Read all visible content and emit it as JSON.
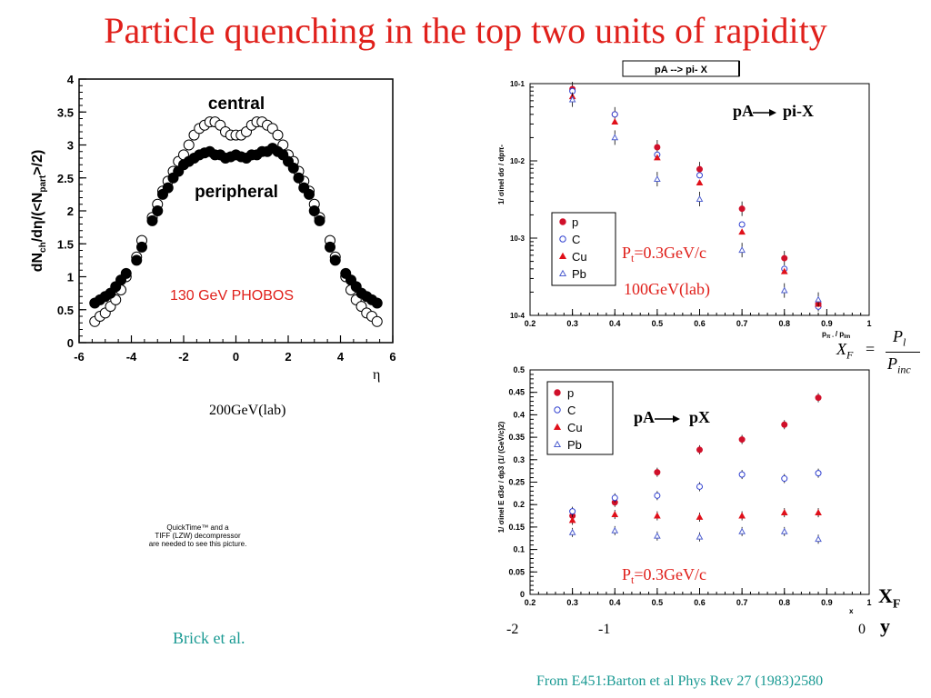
{
  "slide": {
    "title": "Particle quenching in the top two units of rapidity",
    "left_caption": "200GeV(lab)",
    "quicktime_note": [
      "QuickTime™ and a",
      "TIFF (LZW) decompressor",
      "are needed to see this picture."
    ],
    "citation_left": "Brick et al.",
    "citation_right": "From E451:Barton et al Phys Rev 27 (1983)2580",
    "xf_formula": {
      "lhs": "X",
      "lhs_sub": "F",
      "equals": "=",
      "num": "P",
      "num_sub": "l",
      "den": "P",
      "den_sub": "inc"
    },
    "rapidity_axis": {
      "labels": [
        "-2",
        "-1",
        "0"
      ],
      "xf_label": "X",
      "xf_sub": "F",
      "y_label": "y"
    }
  },
  "colors": {
    "title": "#e0201b",
    "accent_red": "#e0201b",
    "citation": "#1a9a93",
    "p": "#d0102a",
    "C": "#3040d0",
    "Cu": "#e0101a",
    "Pb": "#5060d0"
  },
  "chart_data": [
    {
      "id": "phobos",
      "type": "scatter",
      "title": "",
      "xlabel": "η",
      "ylabel_main": "dN",
      "ylabel_sub1": "ch",
      "ylabel_mid": "/dη/(<N",
      "ylabel_sub2": "part",
      "ylabel_end": ">/2)",
      "xlim": [
        -6,
        6
      ],
      "ylim": [
        0,
        4
      ],
      "xticks": [
        "-6",
        "-4",
        "-2",
        "0",
        "2",
        "4",
        "6"
      ],
      "yticks": [
        "0",
        "0.5",
        "1",
        "1.5",
        "2",
        "2.5",
        "3",
        "3.5",
        "4"
      ],
      "annotations": {
        "central": "central",
        "peripheral": "peripheral",
        "experiment": "130 GeV  PHOBOS"
      },
      "series": [
        {
          "name": "central",
          "marker": "open-circle",
          "x": [
            -5.4,
            -5.2,
            -5.0,
            -4.8,
            -4.6,
            -4.4,
            -4.2,
            -3.8,
            -3.6,
            -3.2,
            -3.0,
            -2.8,
            -2.6,
            -2.4,
            -2.2,
            -2.0,
            -1.8,
            -1.6,
            -1.4,
            -1.2,
            -1.0,
            -0.8,
            -0.6,
            -0.4,
            -0.2,
            0.0,
            0.2,
            0.4,
            0.6,
            0.8,
            1.0,
            1.2,
            1.4,
            1.6,
            1.8,
            2.0,
            2.2,
            2.4,
            2.6,
            2.8,
            3.0,
            3.2,
            3.6,
            3.8,
            4.2,
            4.4,
            4.6,
            4.8,
            5.0,
            5.2,
            5.4
          ],
          "y": [
            0.32,
            0.4,
            0.45,
            0.55,
            0.65,
            0.8,
            1.0,
            1.3,
            1.55,
            1.9,
            2.1,
            2.3,
            2.45,
            2.6,
            2.75,
            2.85,
            3.0,
            3.15,
            3.25,
            3.3,
            3.35,
            3.35,
            3.3,
            3.2,
            3.15,
            3.15,
            3.15,
            3.2,
            3.3,
            3.35,
            3.35,
            3.3,
            3.25,
            3.15,
            3.0,
            2.85,
            2.75,
            2.6,
            2.45,
            2.3,
            2.1,
            1.9,
            1.55,
            1.3,
            1.0,
            0.8,
            0.65,
            0.55,
            0.45,
            0.4,
            0.32
          ]
        },
        {
          "name": "peripheral",
          "marker": "filled-circle",
          "x": [
            -5.4,
            -5.2,
            -5.0,
            -4.8,
            -4.6,
            -4.4,
            -4.2,
            -3.8,
            -3.6,
            -3.2,
            -3.0,
            -2.8,
            -2.6,
            -2.4,
            -2.2,
            -2.0,
            -1.8,
            -1.6,
            -1.4,
            -1.2,
            -1.0,
            -0.8,
            -0.6,
            -0.4,
            -0.2,
            0.0,
            0.2,
            0.4,
            0.6,
            0.8,
            1.0,
            1.2,
            1.4,
            1.6,
            1.8,
            2.0,
            2.2,
            2.4,
            2.6,
            2.8,
            3.0,
            3.2,
            3.6,
            3.8,
            4.2,
            4.4,
            4.6,
            4.8,
            5.0,
            5.2,
            5.4
          ],
          "y": [
            0.6,
            0.65,
            0.7,
            0.75,
            0.85,
            0.95,
            1.05,
            1.25,
            1.45,
            1.85,
            2.0,
            2.25,
            2.35,
            2.5,
            2.6,
            2.7,
            2.75,
            2.8,
            2.85,
            2.88,
            2.9,
            2.85,
            2.85,
            2.8,
            2.82,
            2.85,
            2.82,
            2.8,
            2.85,
            2.85,
            2.9,
            2.9,
            2.95,
            2.9,
            2.85,
            2.75,
            2.65,
            2.5,
            2.35,
            2.25,
            2.0,
            1.85,
            1.45,
            1.25,
            1.05,
            0.95,
            0.85,
            0.75,
            0.7,
            0.65,
            0.6
          ]
        }
      ]
    },
    {
      "id": "pa-pi",
      "type": "scatter",
      "title": "pA --> pi- X",
      "xlabel_main": "p",
      "xlabel_sub": "π - ",
      "xlabel_sep": " / p",
      "xlabel_sub2": "lm",
      "ylabel": "1/ σinel dσ / dpπ-",
      "xlim": [
        0.2,
        1.0
      ],
      "ylim_log10": [
        -4,
        -1
      ],
      "xticks": [
        "0.2",
        "0.3",
        "0.4",
        "0.5",
        "0.6",
        "0.7",
        "0.8",
        "0.9",
        "1"
      ],
      "yticks": [
        "10-4",
        "10-3",
        "10-2",
        "10-1"
      ],
      "reaction_lhs": "pA",
      "reaction_rhs": "pi-X",
      "pt_label_main": "P",
      "pt_label_sub": "t",
      "pt_label_rest": "=0.3GeV/c",
      "energy_label": "100GeV(lab)",
      "legend": [
        "p",
        "C",
        "Cu",
        "Pb"
      ],
      "series": [
        {
          "name": "p",
          "marker": "filled-circle",
          "x": [
            0.3,
            0.4,
            0.5,
            0.6,
            0.7,
            0.8,
            0.88
          ],
          "y": [
            0.085,
            0.04,
            0.015,
            0.0078,
            0.0024,
            0.00055,
            0.00014
          ]
        },
        {
          "name": "C",
          "marker": "open-circle",
          "x": [
            0.3,
            0.4,
            0.5,
            0.6,
            0.7,
            0.8,
            0.88
          ],
          "y": [
            0.08,
            0.04,
            0.012,
            0.0065,
            0.0015,
            0.0004,
            0.00013
          ]
        },
        {
          "name": "Cu",
          "marker": "filled-triangle",
          "x": [
            0.3,
            0.4,
            0.5,
            0.6,
            0.7,
            0.8,
            0.88
          ],
          "y": [
            0.068,
            0.032,
            0.011,
            0.0052,
            0.0012,
            0.00037,
            0.00014
          ]
        },
        {
          "name": "Pb",
          "marker": "open-triangle",
          "x": [
            0.3,
            0.4,
            0.5,
            0.6,
            0.7,
            0.8,
            0.88
          ],
          "y": [
            0.062,
            0.02,
            0.0058,
            0.0032,
            0.0007,
            0.00021,
            0.00016
          ]
        }
      ]
    },
    {
      "id": "pa-p",
      "type": "scatter",
      "title": "",
      "xlabel": "x",
      "ylabel": "1/ σinel E d3σ / dp3 (1/ (GeV/c)2)",
      "xlim": [
        0.2,
        1.0
      ],
      "ylim": [
        0,
        0.5
      ],
      "xticks": [
        "0.2",
        "0.3",
        "0.4",
        "0.5",
        "0.6",
        "0.7",
        "0.8",
        "0.9",
        "1"
      ],
      "yticks": [
        "0",
        "0.05",
        "0.1",
        "0.15",
        "0.2",
        "0.25",
        "0.3",
        "0.35",
        "0.4",
        "0.45",
        "0.5"
      ],
      "reaction_lhs": "pA",
      "reaction_rhs": "pX",
      "pt_label_main": "P",
      "pt_label_sub": "t",
      "pt_label_rest": "=0.3GeV/c",
      "legend": [
        "p",
        "C",
        "Cu",
        "Pb"
      ],
      "series": [
        {
          "name": "p",
          "marker": "filled-circle",
          "x": [
            0.3,
            0.4,
            0.5,
            0.6,
            0.7,
            0.8,
            0.88
          ],
          "y": [
            0.175,
            0.205,
            0.272,
            0.322,
            0.345,
            0.378,
            0.438
          ]
        },
        {
          "name": "C",
          "marker": "open-circle",
          "x": [
            0.3,
            0.4,
            0.5,
            0.6,
            0.7,
            0.8,
            0.88
          ],
          "y": [
            0.185,
            0.215,
            0.22,
            0.24,
            0.267,
            0.258,
            0.27
          ]
        },
        {
          "name": "Cu",
          "marker": "filled-triangle",
          "x": [
            0.3,
            0.4,
            0.5,
            0.6,
            0.7,
            0.8,
            0.88
          ],
          "y": [
            0.165,
            0.178,
            0.175,
            0.172,
            0.175,
            0.182,
            0.182
          ]
        },
        {
          "name": "Pb",
          "marker": "open-triangle",
          "x": [
            0.3,
            0.4,
            0.5,
            0.6,
            0.7,
            0.8,
            0.88
          ],
          "y": [
            0.138,
            0.142,
            0.13,
            0.128,
            0.14,
            0.14,
            0.123
          ]
        }
      ]
    }
  ]
}
